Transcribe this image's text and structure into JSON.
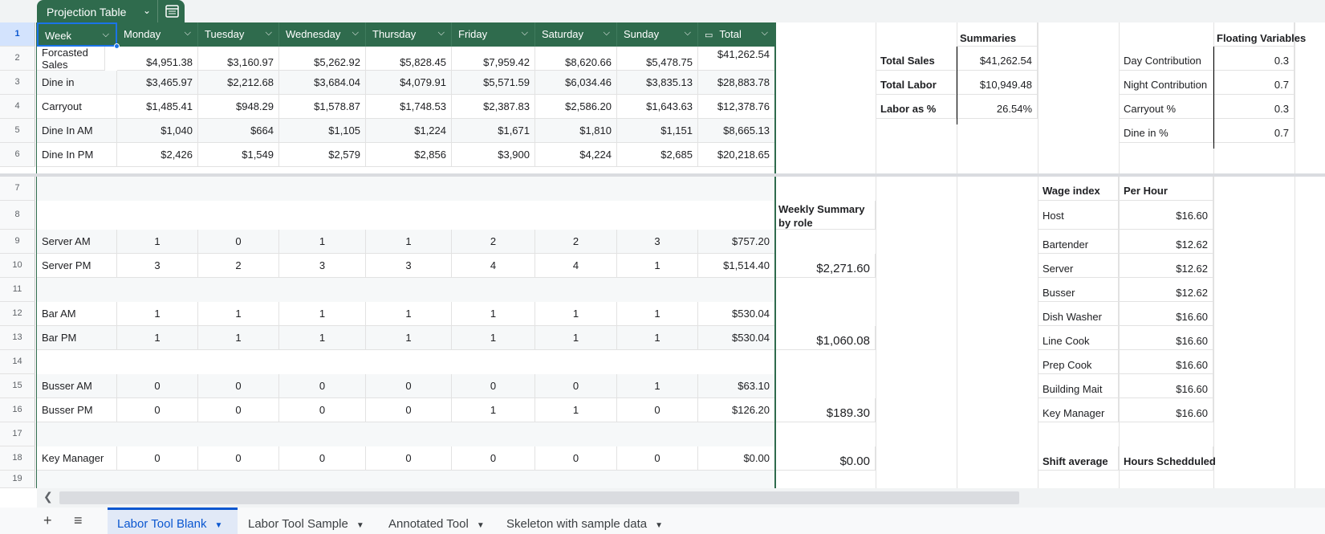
{
  "table_name": "Projection Table",
  "row_numbers": [
    "1",
    "2",
    "3",
    "4",
    "5",
    "6",
    "7",
    "8",
    "9",
    "10",
    "11",
    "12",
    "13",
    "14",
    "15",
    "16",
    "17",
    "18",
    "19"
  ],
  "headers": [
    "Week",
    "Monday",
    "Tuesday",
    "Wednesday",
    "Thursday",
    "Friday",
    "Saturday",
    "Sunday",
    "Total"
  ],
  "sales_rows": [
    {
      "label": "Forcasted Sales",
      "values": [
        "$4,951.38",
        "$3,160.97",
        "$5,262.92",
        "$5,828.45",
        "$7,959.42",
        "$8,620.66",
        "$5,478.75",
        "$41,262.54"
      ]
    },
    {
      "label": "Dine in",
      "values": [
        "$3,465.97",
        "$2,212.68",
        "$3,684.04",
        "$4,079.91",
        "$5,571.59",
        "$6,034.46",
        "$3,835.13",
        "$28,883.78"
      ]
    },
    {
      "label": "Carryout",
      "values": [
        "$1,485.41",
        "$948.29",
        "$1,578.87",
        "$1,748.53",
        "$2,387.83",
        "$2,586.20",
        "$1,643.63",
        "$12,378.76"
      ]
    },
    {
      "label": "Dine In AM",
      "values": [
        "$1,040",
        "$664",
        "$1,105",
        "$1,224",
        "$1,671",
        "$1,810",
        "$1,151",
        "$8,665.13"
      ]
    },
    {
      "label": "Dine In PM",
      "values": [
        "$2,426",
        "$1,549",
        "$2,579",
        "$2,856",
        "$3,900",
        "$4,224",
        "$2,685",
        "$20,218.65"
      ]
    }
  ],
  "staff_rows": [
    {
      "label": "Server AM",
      "values": [
        "1",
        "0",
        "1",
        "1",
        "2",
        "2",
        "3",
        "$757.20"
      ]
    },
    {
      "label": "Server PM",
      "values": [
        "3",
        "2",
        "3",
        "3",
        "4",
        "4",
        "1",
        "$1,514.40"
      ]
    },
    {
      "label": "Bar AM",
      "values": [
        "1",
        "1",
        "1",
        "1",
        "1",
        "1",
        "1",
        "$530.04"
      ]
    },
    {
      "label": "Bar PM",
      "values": [
        "1",
        "1",
        "1",
        "1",
        "1",
        "1",
        "1",
        "$530.04"
      ]
    },
    {
      "label": "Busser AM",
      "values": [
        "0",
        "0",
        "0",
        "0",
        "0",
        "0",
        "1",
        "$63.10"
      ]
    },
    {
      "label": "Busser PM",
      "values": [
        "0",
        "0",
        "0",
        "0",
        "1",
        "1",
        "0",
        "$126.20"
      ]
    },
    {
      "label": "Key Manager",
      "values": [
        "0",
        "0",
        "0",
        "0",
        "0",
        "0",
        "0",
        "$0.00"
      ]
    }
  ],
  "summaries": {
    "title": "Summaries",
    "rows": [
      {
        "label": "Total Sales",
        "value": "$41,262.54"
      },
      {
        "label": "Total Labor",
        "value": "$10,949.48"
      },
      {
        "label": "Labor as %",
        "value": "26.54%"
      }
    ]
  },
  "floating": {
    "title": "Floating Variables",
    "rows": [
      {
        "label": "Day Contribution",
        "value": "0.3"
      },
      {
        "label": "Night Contribution",
        "value": "0.7"
      },
      {
        "label": "Carryout %",
        "value": "0.3"
      },
      {
        "label": "Dine in %",
        "value": "0.7"
      }
    ]
  },
  "weekly": {
    "title": "Weekly Summary by role",
    "values": [
      "$2,271.60",
      "$1,060.08",
      "$189.30",
      "$0.00"
    ]
  },
  "wage": {
    "header_left": "Wage index",
    "header_right": "Per Hour",
    "rows": [
      {
        "label": "Host",
        "value": "$16.60"
      },
      {
        "label": "Bartender",
        "value": "$12.62"
      },
      {
        "label": "Server",
        "value": "$12.62"
      },
      {
        "label": "Busser",
        "value": "$12.62"
      },
      {
        "label": "Dish Washer",
        "value": "$16.60"
      },
      {
        "label": "Line Cook",
        "value": "$16.60"
      },
      {
        "label": "Prep Cook",
        "value": "$16.60"
      },
      {
        "label": "Building Mait",
        "value": "$16.60"
      },
      {
        "label": "Key Manager",
        "value": "$16.60"
      }
    ]
  },
  "shift": {
    "left": "Shift average",
    "right": "Hours Schedduled"
  },
  "sheets": [
    "Labor Tool Blank",
    "Labor Tool Sample",
    "Annotated Tool",
    "Skeleton with sample data"
  ],
  "icons": {
    "add": "plus-icon",
    "menu": "list-menu-icon",
    "calendar": "table-view-icon",
    "scroll_left": "chevron-left-icon"
  },
  "colors": {
    "table_header": "#2f6b4d",
    "selection": "#1a73e8",
    "active_tab": "#0b57d0"
  }
}
